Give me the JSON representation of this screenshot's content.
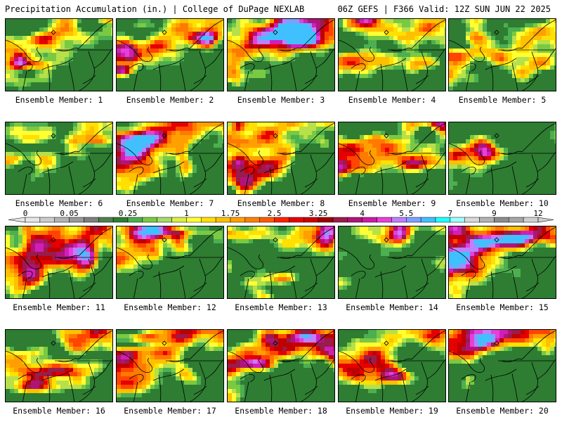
{
  "header": {
    "left_title": "Precipitation Accumulation (in.) | College of DuPage NEXLAB",
    "right_title": "06Z GEFS | F366 Valid: 12Z SUN JUN 22 2025"
  },
  "colors": {
    "bins": [
      "#e6e6e6",
      "#cccccc",
      "#b3b3b3",
      "#999999",
      "#7f7f7f",
      "#4d804d",
      "#2e7d32",
      "#4caf50",
      "#7ac943",
      "#a6d96a",
      "#d9ef45",
      "#ffff33",
      "#ffe000",
      "#ffc000",
      "#ffa000",
      "#ff8000",
      "#ff5a00",
      "#ff2000",
      "#e60000",
      "#cc0000",
      "#a00000",
      "#9b1b4b",
      "#b0147a",
      "#cc1aa3",
      "#e640d9",
      "#bf7fff",
      "#7f9fff",
      "#40c0ff",
      "#20ffff",
      "#9fffff",
      "#d9d9d9",
      "#b3b3b3",
      "#8c8c8c",
      "#a6a6a6",
      "#cfcfcf"
    ]
  },
  "legend": {
    "ticks": [
      {
        "label": "0",
        "pos": 0
      },
      {
        "label": "0.05",
        "pos": 3
      },
      {
        "label": "0.25",
        "pos": 7
      },
      {
        "label": "1",
        "pos": 11
      },
      {
        "label": "1.75",
        "pos": 14
      },
      {
        "label": "2.5",
        "pos": 17
      },
      {
        "label": "3.25",
        "pos": 20
      },
      {
        "label": "4",
        "pos": 23
      },
      {
        "label": "5.5",
        "pos": 26
      },
      {
        "label": "7",
        "pos": 29
      },
      {
        "label": "9",
        "pos": 32
      },
      {
        "label": "12",
        "pos": 35
      }
    ]
  },
  "panels": [
    {
      "label": "Ensemble Member: 1",
      "wet": 0.6,
      "seed": 11
    },
    {
      "label": "Ensemble Member: 2",
      "wet": 0.38,
      "seed": 23
    },
    {
      "label": "Ensemble Member: 3",
      "wet": 0.58,
      "seed": 37
    },
    {
      "label": "Ensemble Member: 4",
      "wet": 0.45,
      "seed": 41
    },
    {
      "label": "Ensemble Member: 5",
      "wet": 0.62,
      "seed": 53
    },
    {
      "label": "Ensemble Member: 6",
      "wet": 0.52,
      "seed": 67
    },
    {
      "label": "Ensemble Member: 7",
      "wet": 0.7,
      "seed": 71
    },
    {
      "label": "Ensemble Member: 8",
      "wet": 0.52,
      "seed": 83
    },
    {
      "label": "Ensemble Member: 9",
      "wet": 0.65,
      "seed": 97
    },
    {
      "label": "Ensemble Member: 10",
      "wet": 0.4,
      "seed": 101
    },
    {
      "label": "Ensemble Member: 11",
      "wet": 0.58,
      "seed": 113
    },
    {
      "label": "Ensemble Member: 12",
      "wet": 0.52,
      "seed": 127
    },
    {
      "label": "Ensemble Member: 13",
      "wet": 0.5,
      "seed": 131
    },
    {
      "label": "Ensemble Member: 14",
      "wet": 0.62,
      "seed": 149
    },
    {
      "label": "Ensemble Member: 15",
      "wet": 0.62,
      "seed": 151
    },
    {
      "label": "Ensemble Member: 16",
      "wet": 0.6,
      "seed": 163
    },
    {
      "label": "Ensemble Member: 17",
      "wet": 0.68,
      "seed": 173
    },
    {
      "label": "Ensemble Member: 18",
      "wet": 0.66,
      "seed": 181
    },
    {
      "label": "Ensemble Member: 19",
      "wet": 0.6,
      "seed": 191
    },
    {
      "label": "Ensemble Member: 20",
      "wet": 0.66,
      "seed": 197
    }
  ]
}
